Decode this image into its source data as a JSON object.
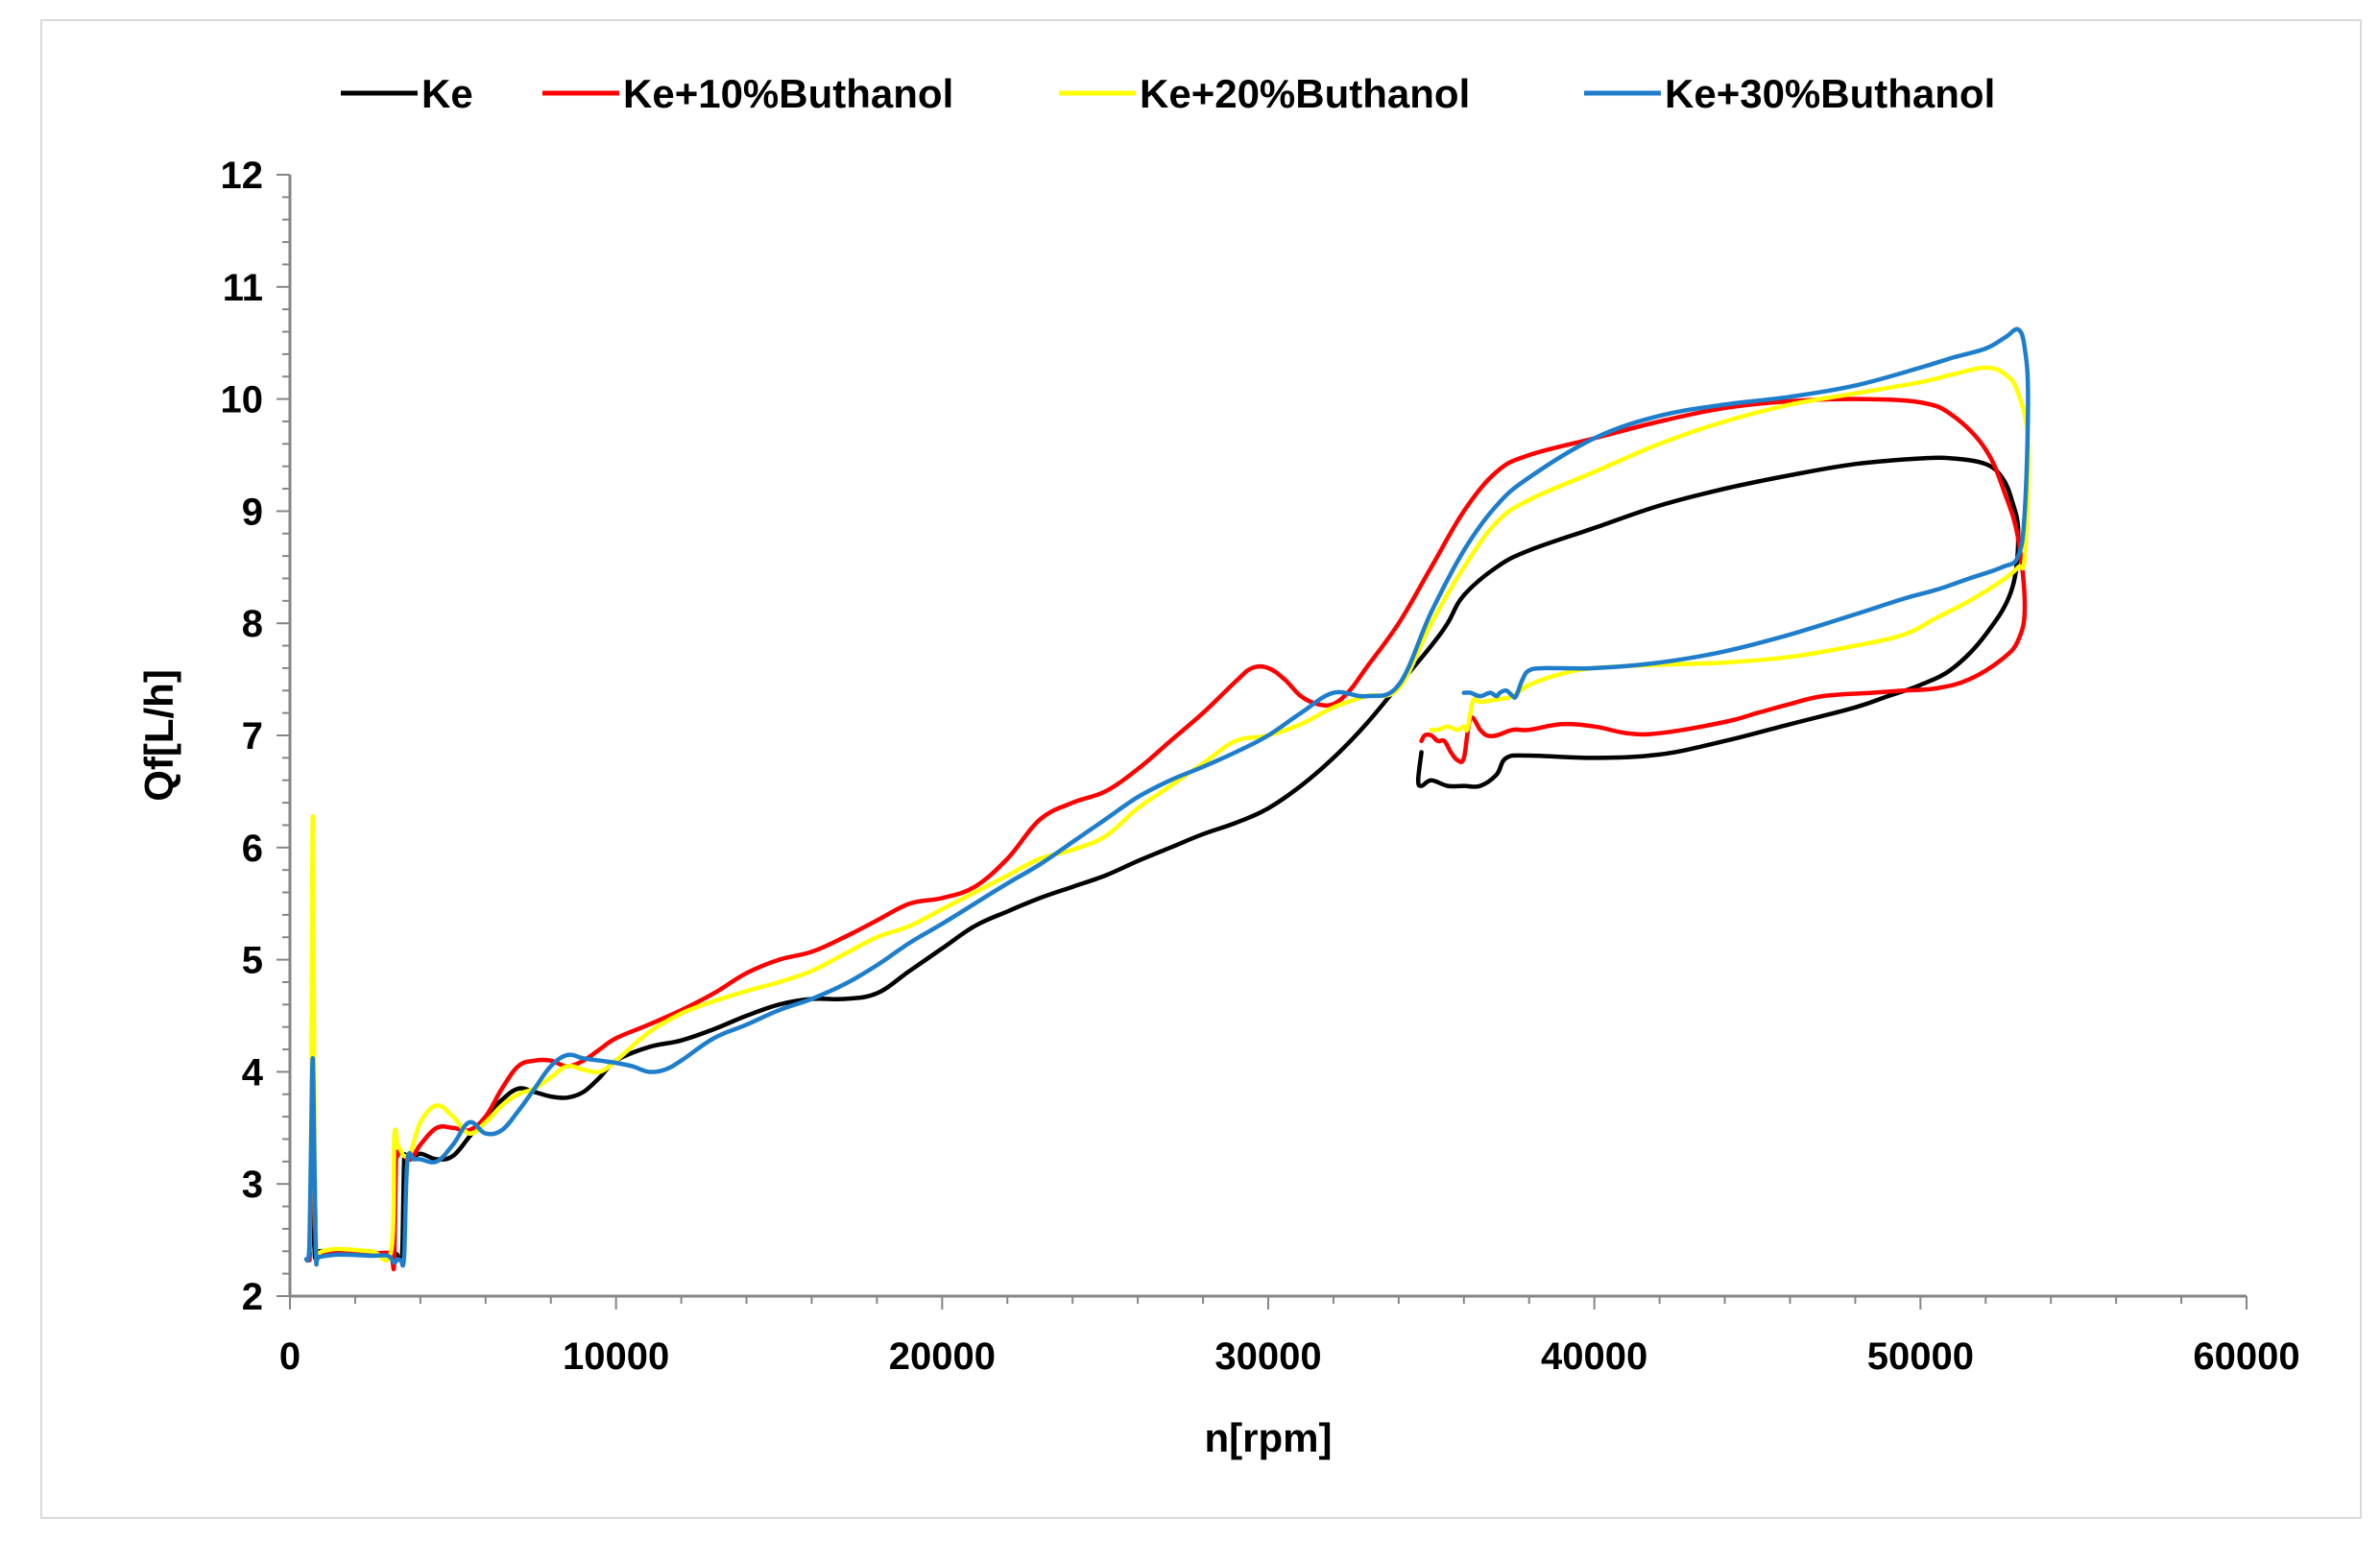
{
  "chart_data": {
    "type": "line",
    "title": "",
    "xlabel": "n[rpm]",
    "ylabel": "Qf[L/h]",
    "xlim": [
      0,
      60000
    ],
    "ylim": [
      2,
      12
    ],
    "x_ticks": [
      "0",
      "10000",
      "20000",
      "30000",
      "40000",
      "50000",
      "60000"
    ],
    "y_ticks": [
      "2",
      "3",
      "4",
      "5",
      "6",
      "7",
      "8",
      "9",
      "10",
      "11",
      "12"
    ],
    "grid": false,
    "legend_position": "top",
    "series": [
      {
        "name": "Ke",
        "color": "#000000",
        "x": [
          600,
          650,
          700,
          720,
          740,
          760,
          800,
          830,
          860,
          1500,
          2500,
          3200,
          3300,
          3400,
          3450,
          3500,
          3550,
          3700,
          4000,
          4500,
          5000,
          5500,
          6000,
          6500,
          7000,
          7500,
          8000,
          8500,
          9000,
          9500,
          10000,
          11000,
          12000,
          13000,
          14000,
          15000,
          16000,
          17000,
          18000,
          19000,
          20000,
          21000,
          22000,
          23000,
          24000,
          25000,
          26000,
          27000,
          28000,
          29000,
          30000,
          31000,
          32000,
          33000,
          34000,
          35000,
          35500,
          36000,
          37000,
          38000,
          40000,
          42000,
          44000,
          46000,
          48000,
          50000,
          51000,
          52000,
          52500,
          52800,
          53000,
          52800,
          52000,
          51000,
          50000,
          49000,
          48000,
          46000,
          44000,
          42000,
          40000,
          38000,
          37300,
          37000,
          36500,
          36000,
          35500,
          35000,
          34700,
          34600,
          34700
        ],
        "y": [
          2.35,
          2.8,
          4.3,
          4.65,
          2.9,
          2.38,
          2.38,
          2.38,
          2.4,
          2.4,
          2.38,
          2.38,
          2.35,
          2.33,
          2.45,
          3.2,
          3.22,
          3.22,
          3.27,
          3.22,
          3.25,
          3.42,
          3.6,
          3.75,
          3.85,
          3.82,
          3.78,
          3.77,
          3.82,
          3.95,
          4.1,
          4.22,
          4.28,
          4.38,
          4.5,
          4.6,
          4.65,
          4.65,
          4.7,
          4.9,
          5.1,
          5.3,
          5.43,
          5.55,
          5.65,
          5.75,
          5.88,
          6.0,
          6.12,
          6.22,
          6.35,
          6.55,
          6.8,
          7.1,
          7.45,
          7.8,
          8.0,
          8.25,
          8.5,
          8.65,
          8.85,
          9.05,
          9.2,
          9.32,
          9.42,
          9.47,
          9.47,
          9.42,
          9.3,
          9.1,
          8.8,
          8.3,
          7.9,
          7.6,
          7.45,
          7.35,
          7.25,
          7.1,
          6.95,
          6.83,
          6.8,
          6.82,
          6.8,
          6.65,
          6.55,
          6.55,
          6.55,
          6.6,
          6.55,
          6.6,
          6.85
        ]
      },
      {
        "name": "Ke+10%Buthanol",
        "color": "#ff0000",
        "x": [
          600,
          650,
          700,
          750,
          800,
          850,
          900,
          1000,
          1500,
          2500,
          3100,
          3150,
          3200,
          3250,
          3300,
          3350,
          3400,
          3700,
          4000,
          4500,
          5000,
          5500,
          6000,
          6500,
          7000,
          7500,
          8000,
          8500,
          9000,
          9500,
          10000,
          11000,
          12000,
          13000,
          14000,
          15000,
          16000,
          17000,
          18000,
          19000,
          20000,
          21000,
          22000,
          23000,
          24000,
          25000,
          26000,
          27000,
          28000,
          29000,
          29500,
          30000,
          30500,
          31000,
          31500,
          32000,
          32500,
          33000,
          34000,
          35000,
          36000,
          37000,
          38000,
          40000,
          42000,
          44000,
          46000,
          48000,
          50000,
          51000,
          52000,
          52600,
          53000,
          53200,
          53000,
          52500,
          51500,
          50500,
          49500,
          48500,
          47000,
          46000,
          45000,
          44000,
          42000,
          41000,
          40000,
          39000,
          38000,
          37500,
          37000,
          36700,
          36500,
          36200,
          36000,
          35800,
          35600,
          35400,
          35200,
          35000,
          34800,
          34700
        ],
        "y": [
          2.32,
          3.0,
          4.2,
          3.2,
          2.4,
          2.35,
          2.35,
          2.38,
          2.38,
          2.38,
          2.38,
          2.3,
          2.32,
          3.2,
          3.25,
          3.3,
          3.28,
          3.22,
          3.35,
          3.5,
          3.5,
          3.48,
          3.6,
          3.85,
          4.05,
          4.1,
          4.1,
          4.05,
          4.1,
          4.2,
          4.3,
          4.42,
          4.55,
          4.7,
          4.88,
          5.0,
          5.07,
          5.2,
          5.35,
          5.5,
          5.55,
          5.65,
          5.9,
          6.25,
          6.4,
          6.5,
          6.7,
          6.95,
          7.2,
          7.48,
          7.6,
          7.6,
          7.5,
          7.35,
          7.28,
          7.28,
          7.4,
          7.6,
          8.0,
          8.5,
          9.0,
          9.35,
          9.5,
          9.65,
          9.8,
          9.92,
          9.98,
          10.0,
          9.97,
          9.85,
          9.55,
          9.15,
          8.75,
          8.15,
          7.85,
          7.68,
          7.5,
          7.42,
          7.4,
          7.38,
          7.35,
          7.28,
          7.2,
          7.12,
          7.02,
          7.02,
          7.08,
          7.1,
          7.05,
          7.05,
          7.0,
          7.0,
          7.05,
          7.15,
          6.8,
          6.78,
          6.85,
          6.95,
          6.95,
          7.0,
          7.0,
          6.95
        ]
      },
      {
        "name": "Ke+20%Buthanol",
        "color": "#ffff00",
        "x": [
          600,
          650,
          700,
          750,
          800,
          850,
          900,
          1000,
          1500,
          2500,
          3100,
          3200,
          3300,
          3400,
          3500,
          3700,
          4000,
          4500,
          5000,
          5500,
          6000,
          6500,
          7000,
          7500,
          8000,
          8500,
          9000,
          9500,
          10000,
          11000,
          12000,
          13000,
          14000,
          15000,
          16000,
          17000,
          18000,
          19000,
          20000,
          21000,
          22000,
          23000,
          24000,
          25000,
          26000,
          27000,
          28000,
          29000,
          30000,
          31000,
          32000,
          33000,
          34000,
          35000,
          36000,
          37000,
          38000,
          40000,
          42000,
          44000,
          46000,
          48000,
          50000,
          51000,
          52000,
          52600,
          53000,
          53300,
          53200,
          53000,
          52500,
          51500,
          50500,
          49500,
          48000,
          46000,
          44000,
          42000,
          40000,
          39000,
          38000,
          37500,
          37000,
          36500,
          36300,
          36200,
          36100,
          36000,
          35800,
          35500,
          35200,
          35000
        ],
        "y": [
          2.4,
          3.5,
          6.28,
          3.5,
          2.4,
          2.38,
          2.38,
          2.4,
          2.42,
          2.4,
          2.4,
          3.42,
          3.35,
          3.3,
          3.25,
          3.28,
          3.55,
          3.7,
          3.6,
          3.45,
          3.55,
          3.7,
          3.8,
          3.85,
          3.95,
          4.05,
          4.02,
          4.0,
          4.1,
          4.35,
          4.52,
          4.63,
          4.72,
          4.8,
          4.9,
          5.05,
          5.2,
          5.3,
          5.45,
          5.6,
          5.75,
          5.9,
          5.98,
          6.1,
          6.35,
          6.55,
          6.75,
          6.95,
          7.0,
          7.1,
          7.25,
          7.35,
          7.42,
          8.0,
          8.5,
          8.9,
          9.1,
          9.35,
          9.6,
          9.8,
          9.95,
          10.05,
          10.15,
          10.22,
          10.28,
          10.22,
          10.05,
          9.6,
          8.6,
          8.5,
          8.38,
          8.2,
          8.05,
          7.9,
          7.8,
          7.7,
          7.65,
          7.63,
          7.6,
          7.55,
          7.45,
          7.35,
          7.32,
          7.3,
          7.32,
          7.2,
          7.05,
          7.08,
          7.05,
          7.08,
          7.05,
          7.05
        ]
      },
      {
        "name": "Ke+30%Buthanol",
        "color": "#1f7ecb",
        "x": [
          500,
          550,
          600,
          650,
          700,
          750,
          800,
          900,
          1500,
          2500,
          3000,
          3200,
          3300,
          3400,
          3500,
          3600,
          3800,
          4000,
          4500,
          5000,
          5500,
          6000,
          6500,
          7000,
          7500,
          8000,
          8500,
          9000,
          9500,
          10000,
          10500,
          11000,
          11500,
          12000,
          13000,
          14000,
          15000,
          16000,
          17000,
          18000,
          19000,
          20000,
          21000,
          22000,
          23000,
          24000,
          25000,
          26000,
          27000,
          28000,
          29000,
          30000,
          31000,
          32000,
          33000,
          34000,
          35000,
          36000,
          37000,
          38000,
          40000,
          42000,
          44000,
          46000,
          48000,
          50000,
          51000,
          52000,
          52600,
          53000,
          53200,
          53300,
          53200,
          53000,
          52500,
          51500,
          50500,
          49500,
          48000,
          46000,
          44000,
          42000,
          40000,
          38500,
          38000,
          37800,
          37600,
          37500,
          37300,
          37100,
          37000,
          36800,
          36500,
          36200,
          36000
        ],
        "y": [
          2.33,
          2.33,
          2.5,
          3.4,
          4.12,
          3.2,
          2.35,
          2.35,
          2.37,
          2.36,
          2.36,
          2.3,
          2.33,
          2.32,
          2.35,
          3.2,
          3.22,
          3.22,
          3.2,
          3.35,
          3.55,
          3.45,
          3.48,
          3.65,
          3.85,
          4.05,
          4.15,
          4.12,
          4.1,
          4.08,
          4.05,
          4.0,
          4.02,
          4.1,
          4.3,
          4.42,
          4.55,
          4.65,
          4.78,
          4.95,
          5.15,
          5.32,
          5.5,
          5.68,
          5.85,
          6.05,
          6.25,
          6.45,
          6.6,
          6.72,
          6.85,
          7.0,
          7.2,
          7.38,
          7.35,
          7.45,
          8.1,
          8.65,
          9.05,
          9.3,
          9.65,
          9.85,
          9.95,
          10.02,
          10.12,
          10.28,
          10.37,
          10.45,
          10.55,
          10.62,
          10.45,
          10.0,
          9.0,
          8.6,
          8.5,
          8.4,
          8.3,
          8.22,
          8.08,
          7.9,
          7.75,
          7.65,
          7.6,
          7.6,
          7.58,
          7.5,
          7.35,
          7.35,
          7.4,
          7.38,
          7.35,
          7.38,
          7.35,
          7.38,
          7.38
        ]
      }
    ]
  }
}
